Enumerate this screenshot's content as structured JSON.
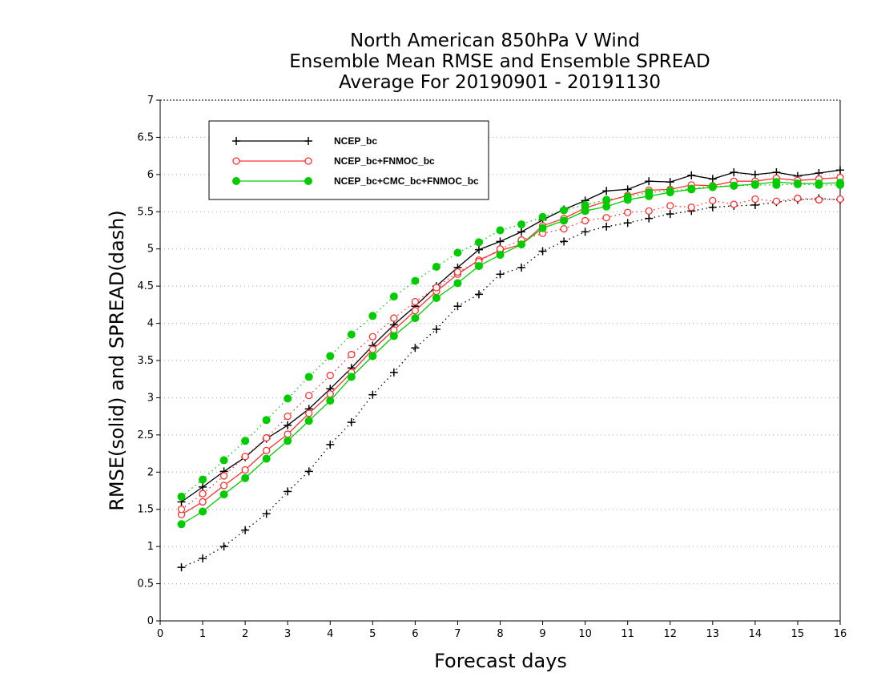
{
  "colors": {
    "NCEP_bc": "#000000",
    "NCEP_bc+FNMOC_bc": "#ff3030",
    "NCEP_bc+CMC_bc+FNMOC_bc": "#00cc00",
    "grid": "#a0a0a0"
  },
  "chart_data": {
    "type": "line",
    "title": [
      "North American 850hPa V Wind",
      "Ensemble Mean RMSE and Ensemble SPREAD",
      "Average For 20190901 - 20191130"
    ],
    "xlabel": "Forecast days",
    "ylabel": "RMSE(solid) and SPREAD(dash)",
    "xlim": [
      0,
      16
    ],
    "ylim": [
      0,
      7
    ],
    "xticks": [
      0,
      1,
      2,
      3,
      4,
      5,
      6,
      7,
      8,
      9,
      10,
      11,
      12,
      13,
      14,
      15,
      16
    ],
    "xtick_labels": [
      "0",
      "1",
      "2",
      "3",
      "4",
      "5",
      "6",
      "7",
      "8",
      "9",
      "10",
      "11",
      "12",
      "13",
      "14",
      "15",
      "16"
    ],
    "yticks": [
      0,
      0.5,
      1,
      1.5,
      2,
      2.5,
      3,
      3.5,
      4,
      4.5,
      5,
      5.5,
      6,
      6.5,
      7
    ],
    "ytick_labels": [
      "0",
      "0.5",
      "1",
      "1.5",
      "2",
      "2.5",
      "3",
      "3.5",
      "4",
      "4.5",
      "5",
      "5.5",
      "6",
      "6.5",
      "7"
    ],
    "grid": "horizontal dotted",
    "legend_placement": "top-left",
    "x": [
      0.5,
      1,
      1.5,
      2,
      2.5,
      3,
      3.5,
      4,
      4.5,
      5,
      5.5,
      6,
      6.5,
      7,
      7.5,
      8,
      8.5,
      9,
      9.5,
      10,
      10.5,
      11,
      11.5,
      12,
      12.5,
      13,
      13.5,
      14,
      14.5,
      15,
      15.5,
      16
    ],
    "series": [
      {
        "name": "NCEP_bc",
        "marker": "plus",
        "rmse": [
          1.6,
          1.8,
          2.01,
          2.2,
          2.45,
          2.63,
          2.85,
          3.12,
          3.4,
          3.7,
          3.98,
          4.23,
          4.5,
          4.75,
          4.99,
          5.1,
          5.23,
          5.39,
          5.53,
          5.65,
          5.78,
          5.8,
          5.91,
          5.9,
          5.99,
          5.94,
          6.03,
          6.0,
          6.03,
          5.98,
          6.02,
          6.06
        ],
        "spread": [
          0.72,
          0.84,
          1.0,
          1.22,
          1.44,
          1.74,
          2.01,
          2.37,
          2.67,
          3.04,
          3.34,
          3.67,
          3.92,
          4.23,
          4.39,
          4.66,
          4.75,
          4.97,
          5.1,
          5.23,
          5.3,
          5.35,
          5.41,
          5.47,
          5.51,
          5.56,
          5.58,
          5.59,
          5.63,
          5.66,
          5.68,
          5.66
        ]
      },
      {
        "name": "NCEP_bc+FNMOC_bc",
        "marker": "open-circle",
        "rmse": [
          1.43,
          1.6,
          1.82,
          2.03,
          2.29,
          2.51,
          2.79,
          3.05,
          3.34,
          3.65,
          3.91,
          4.17,
          4.43,
          4.66,
          4.85,
          4.98,
          5.06,
          5.31,
          5.41,
          5.55,
          5.64,
          5.72,
          5.79,
          5.8,
          5.86,
          5.85,
          5.91,
          5.91,
          5.95,
          5.92,
          5.94,
          5.96
        ],
        "spread": [
          1.5,
          1.71,
          1.95,
          2.21,
          2.46,
          2.75,
          3.03,
          3.3,
          3.58,
          3.82,
          4.07,
          4.29,
          4.48,
          4.69,
          4.83,
          5.0,
          5.12,
          5.21,
          5.27,
          5.38,
          5.42,
          5.49,
          5.51,
          5.58,
          5.56,
          5.65,
          5.6,
          5.67,
          5.64,
          5.68,
          5.66,
          5.67
        ]
      },
      {
        "name": "NCEP_bc+CMC_bc+FNMOC_bc",
        "marker": "filled-circle",
        "rmse": [
          1.3,
          1.47,
          1.7,
          1.92,
          2.18,
          2.42,
          2.69,
          2.96,
          3.28,
          3.56,
          3.83,
          4.07,
          4.34,
          4.54,
          4.77,
          4.92,
          5.06,
          5.28,
          5.38,
          5.51,
          5.57,
          5.66,
          5.71,
          5.76,
          5.8,
          5.83,
          5.85,
          5.87,
          5.9,
          5.88,
          5.88,
          5.89
        ],
        "spread": [
          1.67,
          1.9,
          2.16,
          2.42,
          2.7,
          2.99,
          3.28,
          3.56,
          3.85,
          4.1,
          4.36,
          4.57,
          4.76,
          4.95,
          5.09,
          5.25,
          5.33,
          5.43,
          5.52,
          5.59,
          5.66,
          5.7,
          5.76,
          5.78,
          5.81,
          5.84,
          5.85,
          5.86,
          5.86,
          5.87,
          5.86,
          5.86
        ]
      }
    ]
  }
}
